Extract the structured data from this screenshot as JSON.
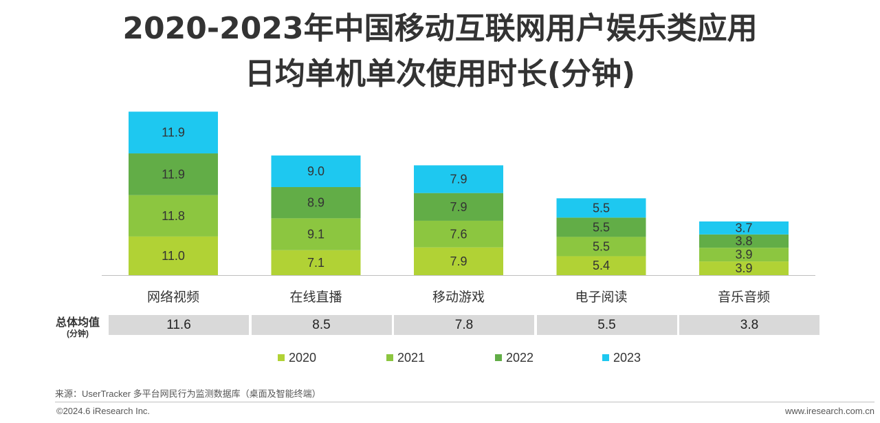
{
  "title": {
    "line1": "2020-2023年中国移动互联网用户娱乐类应用",
    "line2": "日均单机单次使用时长(分钟)"
  },
  "chart_data": {
    "type": "bar",
    "stacked": true,
    "categories": [
      "网络视频",
      "在线直播",
      "移动游戏",
      "电子阅读",
      "音乐音频"
    ],
    "series": [
      {
        "name": "2020",
        "color": "#b1d235",
        "values": [
          11.0,
          7.1,
          7.9,
          5.4,
          3.9
        ]
      },
      {
        "name": "2021",
        "color": "#8cc640",
        "values": [
          11.8,
          9.1,
          7.6,
          5.5,
          3.9
        ]
      },
      {
        "name": "2022",
        "color": "#62ad47",
        "values": [
          11.9,
          8.9,
          7.9,
          5.5,
          3.8
        ]
      },
      {
        "name": "2023",
        "color": "#1ec8f0",
        "values": [
          11.9,
          9.0,
          7.9,
          5.5,
          3.7
        ]
      }
    ],
    "legend_position": "bottom",
    "grid": false
  },
  "averages": {
    "label": "总体均值",
    "unit": "(分钟)",
    "values": [
      "11.6",
      "8.5",
      "7.8",
      "5.5",
      "3.8"
    ]
  },
  "footer": {
    "source": "来源：UserTracker 多平台网民行为监测数据库（桌面及智能终端）",
    "copyright": "©2024.6 iResearch Inc.",
    "website": "www.iresearch.com.cn"
  }
}
